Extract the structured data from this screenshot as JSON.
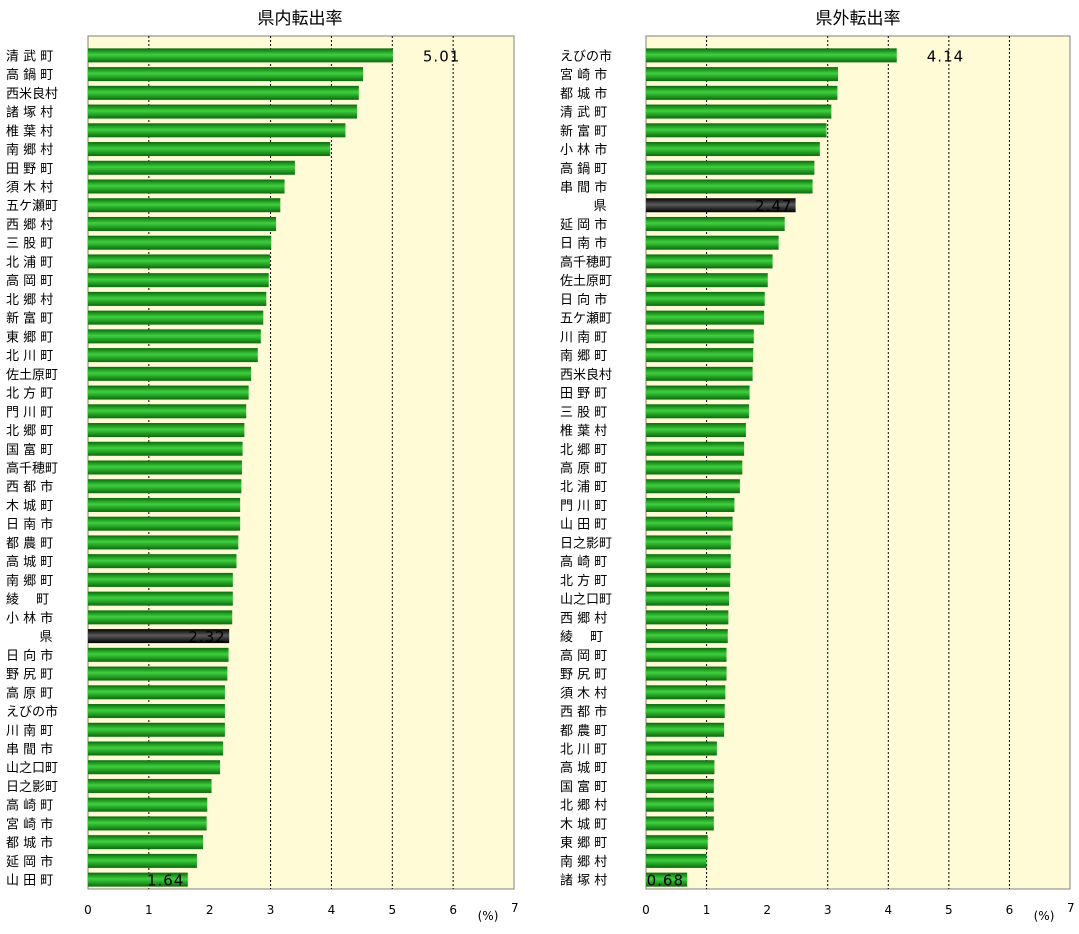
{
  "unit_label": "(%)",
  "colors": {
    "plot_bg": "#fffbd6",
    "bar_green": "#1a9a1a",
    "bar_pref": "#1a1a1a"
  },
  "chart_data": [
    {
      "type": "bar",
      "orientation": "horizontal",
      "title": "県内転出率",
      "xlabel": "(%)",
      "xlim": [
        0,
        7
      ],
      "ticks": [
        0,
        1,
        2,
        3,
        4,
        5,
        6,
        7
      ],
      "grid": "vertical dotted at 1,3,4,5,6",
      "categories": [
        "清 武 町",
        "高 鍋 町",
        "西米良村",
        "諸 塚 村",
        "椎 葉 村",
        "南 郷 村",
        "田 野 町",
        "須 木 村",
        "五ケ瀬町",
        "西 郷 村",
        "三 股 町",
        "北 浦 町",
        "高 岡 町",
        "北 郷 村",
        "新 富 町",
        "東 郷 町",
        "北 川 町",
        "佐土原町",
        "北 方 町",
        "門 川 町",
        "北 郷 町",
        "国 富 町",
        "高千穂町",
        "西 都 市",
        "木 城 町",
        "日 南 市",
        "都 農 町",
        "高 城 町",
        "南 郷 町",
        "綾　 町",
        "小 林 市",
        "県",
        "日 向 市",
        "野 尻 町",
        "高 原 町",
        "えびの市",
        "川 南 町",
        "串 間 市",
        "山之口町",
        "日之影町",
        "高 崎 町",
        "宮 崎 市",
        "都 城 市",
        "延 岡 市",
        "山 田 町"
      ],
      "values": [
        5.01,
        4.52,
        4.45,
        4.42,
        4.23,
        3.98,
        3.4,
        3.23,
        3.16,
        3.09,
        3.01,
        2.99,
        2.97,
        2.93,
        2.88,
        2.84,
        2.79,
        2.68,
        2.64,
        2.6,
        2.57,
        2.54,
        2.53,
        2.52,
        2.5,
        2.5,
        2.47,
        2.44,
        2.38,
        2.38,
        2.37,
        2.32,
        2.31,
        2.29,
        2.25,
        2.25,
        2.25,
        2.22,
        2.17,
        2.03,
        1.96,
        1.95,
        1.89,
        1.79,
        1.64
      ],
      "highlight": "県",
      "labels": [
        {
          "category": "清 武 町",
          "text": "5.01"
        },
        {
          "category": "県",
          "text": "2.32"
        },
        {
          "category": "山 田 町",
          "text": "1.64"
        }
      ]
    },
    {
      "type": "bar",
      "orientation": "horizontal",
      "title": "県外転出率",
      "xlabel": "(%)",
      "xlim": [
        0,
        7
      ],
      "ticks": [
        0,
        1,
        2,
        3,
        4,
        5,
        6,
        7
      ],
      "grid": "vertical dotted at 1,3,4,5,6",
      "categories": [
        "えびの市",
        "宮 崎 市",
        "都 城 市",
        "清 武 町",
        "新 富 町",
        "小 林 市",
        "高 鍋 町",
        "串 間 市",
        "県",
        "延 岡 市",
        "日 南 市",
        "高千穂町",
        "佐土原町",
        "日 向 市",
        "五ケ瀬町",
        "川 南 町",
        "南 郷 町",
        "西米良村",
        "田 野 町",
        "三 股 町",
        "椎 葉 村",
        "北 郷 町",
        "高 原 町",
        "北 浦 町",
        "門 川 町",
        "山 田 町",
        "日之影町",
        "高 崎 町",
        "北 方 町",
        "山之口町",
        "西 郷 村",
        "綾　 町",
        "高 岡 町",
        "野 尻 町",
        "須 木 村",
        "西 都 市",
        "都 農 町",
        "北 川 町",
        "高 城 町",
        "国 富 町",
        "北 郷 村",
        "木 城 町",
        "東 郷 町",
        "南 郷 村",
        "諸 塚 村"
      ],
      "values": [
        4.14,
        3.17,
        3.16,
        3.06,
        2.98,
        2.87,
        2.78,
        2.75,
        2.47,
        2.29,
        2.19,
        2.09,
        2.01,
        1.96,
        1.95,
        1.78,
        1.77,
        1.76,
        1.71,
        1.7,
        1.65,
        1.62,
        1.59,
        1.55,
        1.46,
        1.43,
        1.4,
        1.4,
        1.39,
        1.37,
        1.36,
        1.35,
        1.33,
        1.33,
        1.31,
        1.3,
        1.29,
        1.17,
        1.13,
        1.12,
        1.12,
        1.12,
        1.02,
        1.0,
        0.68
      ],
      "highlight": "県",
      "labels": [
        {
          "category": "えびの市",
          "text": "4.14"
        },
        {
          "category": "県",
          "text": "2.47"
        },
        {
          "category": "諸 塚 村",
          "text": "0.68"
        }
      ]
    }
  ]
}
